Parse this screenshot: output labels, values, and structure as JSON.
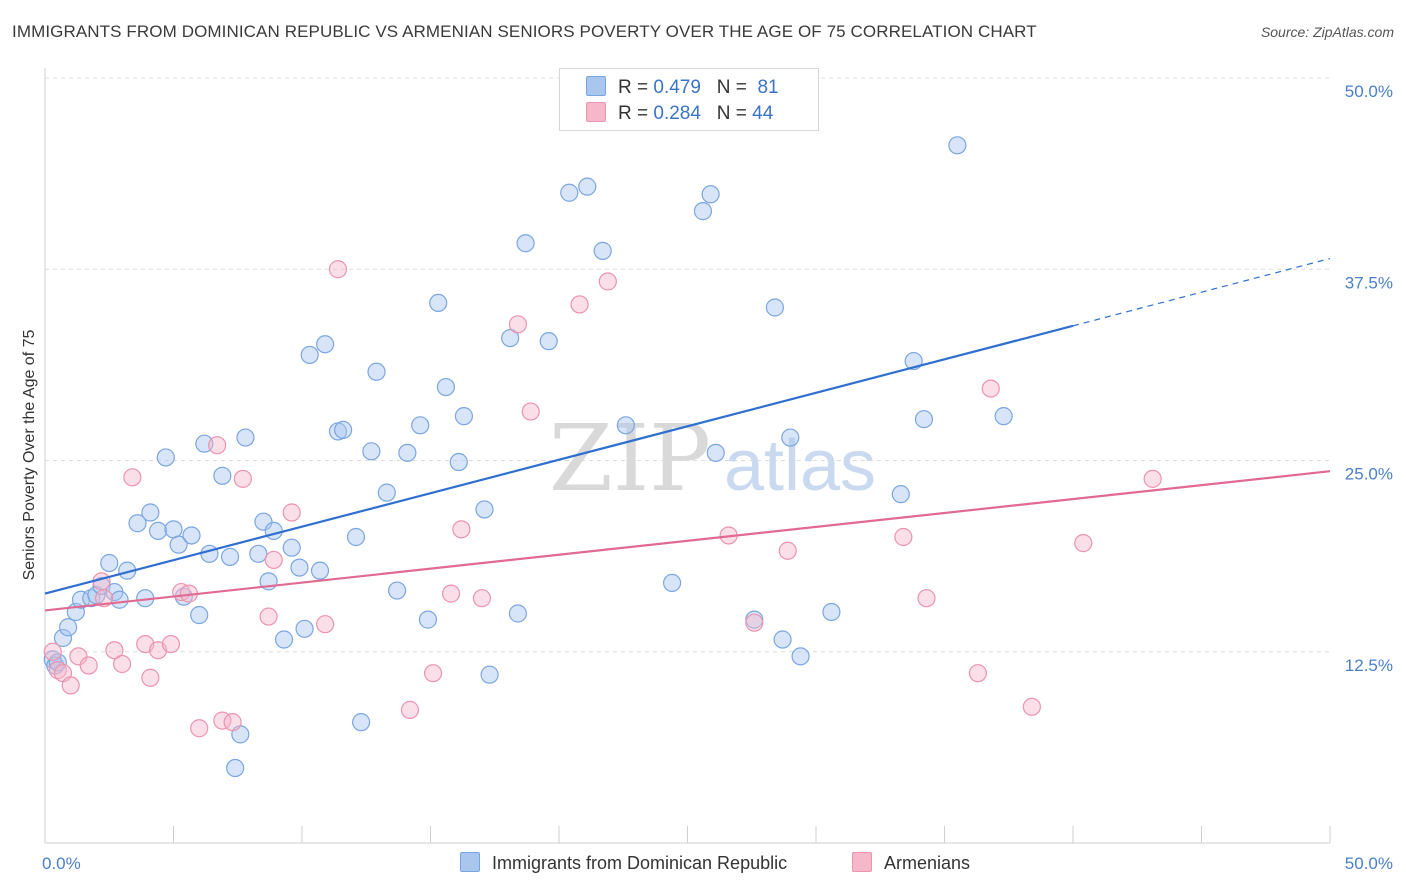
{
  "header": {
    "title": "IMMIGRANTS FROM DOMINICAN REPUBLIC VS ARMENIAN SENIORS POVERTY OVER THE AGE OF 75 CORRELATION CHART",
    "source": "Source: ZipAtlas.com"
  },
  "watermark": {
    "zip": "ZIP",
    "atlas": "atlas"
  },
  "legend": {
    "r_label": "R =",
    "n_label": "N =",
    "items": [
      {
        "r": "0.479",
        "n": "81",
        "color": "#a9c6ef"
      },
      {
        "r": "0.284",
        "n": "44",
        "color": "#f5b8cb"
      }
    ]
  },
  "chart_data": {
    "type": "scatter",
    "ylabel": "Seniors Poverty Over the Age of 75",
    "xlim": [
      0,
      50
    ],
    "ylim": [
      0,
      50
    ],
    "x_tick_labels": [
      "0.0%",
      "50.0%"
    ],
    "y_ticks": [
      12.5,
      25.0,
      37.5,
      50.0
    ],
    "y_tick_labels": [
      "12.5%",
      "25.0%",
      "37.5%",
      "50.0%"
    ],
    "grid": true,
    "legend_position": "top-center",
    "series": [
      {
        "name": "Immigrants from Dominican Republic",
        "color": "#a9c6ef",
        "stroke": "#7aa6e0",
        "trend": {
          "x0": 0,
          "y0": 16.3,
          "x1": 40,
          "y1": 33.8,
          "dashed_to_x": 50,
          "dashed_to_y": 38.2,
          "color": "#2f6fd0"
        },
        "points": [
          [
            0.3,
            12.0
          ],
          [
            0.4,
            11.6
          ],
          [
            0.5,
            11.8
          ],
          [
            0.7,
            13.4
          ],
          [
            0.9,
            14.1
          ],
          [
            1.2,
            15.1
          ],
          [
            1.4,
            15.9
          ],
          [
            1.8,
            16.0
          ],
          [
            2.0,
            16.2
          ],
          [
            2.2,
            16.8
          ],
          [
            2.5,
            18.3
          ],
          [
            2.7,
            16.4
          ],
          [
            2.9,
            15.9
          ],
          [
            3.2,
            17.8
          ],
          [
            3.6,
            20.9
          ],
          [
            3.9,
            16.0
          ],
          [
            4.1,
            21.6
          ],
          [
            4.4,
            20.4
          ],
          [
            4.7,
            25.2
          ],
          [
            5.0,
            20.5
          ],
          [
            5.2,
            19.5
          ],
          [
            5.4,
            16.1
          ],
          [
            5.7,
            20.1
          ],
          [
            6.0,
            14.9
          ],
          [
            6.2,
            26.1
          ],
          [
            6.4,
            18.9
          ],
          [
            6.9,
            24.0
          ],
          [
            7.2,
            18.7
          ],
          [
            7.4,
            4.9
          ],
          [
            7.6,
            7.1
          ],
          [
            7.8,
            26.5
          ],
          [
            8.3,
            18.9
          ],
          [
            8.5,
            21.0
          ],
          [
            8.7,
            17.1
          ],
          [
            8.9,
            20.4
          ],
          [
            9.3,
            13.3
          ],
          [
            9.6,
            19.3
          ],
          [
            9.9,
            18.0
          ],
          [
            10.1,
            14.0
          ],
          [
            10.3,
            31.9
          ],
          [
            10.7,
            17.8
          ],
          [
            10.9,
            32.6
          ],
          [
            11.4,
            26.9
          ],
          [
            11.6,
            27.0
          ],
          [
            12.1,
            20.0
          ],
          [
            12.3,
            7.9
          ],
          [
            12.7,
            25.6
          ],
          [
            12.9,
            30.8
          ],
          [
            13.3,
            22.9
          ],
          [
            13.7,
            16.5
          ],
          [
            14.1,
            25.5
          ],
          [
            14.6,
            27.3
          ],
          [
            14.9,
            14.6
          ],
          [
            15.3,
            35.3
          ],
          [
            15.6,
            29.8
          ],
          [
            16.1,
            24.9
          ],
          [
            16.3,
            27.9
          ],
          [
            17.1,
            21.8
          ],
          [
            17.3,
            11.0
          ],
          [
            18.1,
            33.0
          ],
          [
            18.4,
            15.0
          ],
          [
            18.7,
            39.2
          ],
          [
            19.6,
            32.8
          ],
          [
            20.4,
            42.5
          ],
          [
            21.1,
            42.9
          ],
          [
            21.7,
            38.7
          ],
          [
            22.6,
            27.3
          ],
          [
            24.4,
            17.0
          ],
          [
            25.6,
            41.3
          ],
          [
            25.9,
            42.4
          ],
          [
            26.1,
            25.5
          ],
          [
            27.6,
            14.6
          ],
          [
            28.4,
            35.0
          ],
          [
            28.7,
            13.3
          ],
          [
            29.0,
            26.5
          ],
          [
            29.4,
            12.2
          ],
          [
            30.6,
            15.1
          ],
          [
            33.3,
            22.8
          ],
          [
            33.8,
            31.5
          ],
          [
            34.2,
            27.7
          ],
          [
            35.5,
            45.6
          ],
          [
            37.3,
            27.9
          ]
        ]
      },
      {
        "name": "Armenians",
        "color": "#f5b8cb",
        "stroke": "#ec93ae",
        "trend": {
          "x0": 0,
          "y0": 15.2,
          "x1": 50,
          "y1": 24.3,
          "color": "#e06a92"
        },
        "points": [
          [
            0.3,
            12.5
          ],
          [
            0.5,
            11.3
          ],
          [
            0.7,
            11.1
          ],
          [
            1.0,
            10.3
          ],
          [
            1.3,
            12.2
          ],
          [
            1.7,
            11.6
          ],
          [
            2.2,
            17.1
          ],
          [
            2.3,
            16.0
          ],
          [
            2.7,
            12.6
          ],
          [
            3.0,
            11.7
          ],
          [
            3.4,
            23.9
          ],
          [
            3.9,
            13.0
          ],
          [
            4.1,
            10.8
          ],
          [
            4.4,
            12.6
          ],
          [
            4.9,
            13.0
          ],
          [
            5.3,
            16.4
          ],
          [
            5.6,
            16.3
          ],
          [
            6.0,
            7.5
          ],
          [
            6.7,
            26.0
          ],
          [
            6.9,
            8.0
          ],
          [
            7.3,
            7.9
          ],
          [
            7.7,
            23.8
          ],
          [
            8.7,
            14.8
          ],
          [
            8.9,
            18.5
          ],
          [
            9.6,
            21.6
          ],
          [
            10.9,
            14.3
          ],
          [
            11.4,
            37.5
          ],
          [
            14.2,
            8.7
          ],
          [
            15.1,
            11.1
          ],
          [
            15.8,
            16.3
          ],
          [
            16.2,
            20.5
          ],
          [
            17.0,
            16.0
          ],
          [
            18.4,
            33.9
          ],
          [
            18.9,
            28.2
          ],
          [
            20.8,
            35.2
          ],
          [
            21.9,
            36.7
          ],
          [
            26.6,
            20.1
          ],
          [
            27.6,
            14.4
          ],
          [
            28.9,
            19.1
          ],
          [
            33.4,
            20.0
          ],
          [
            34.3,
            16.0
          ],
          [
            36.3,
            11.1
          ],
          [
            36.8,
            29.7
          ],
          [
            38.4,
            8.9
          ],
          [
            40.4,
            19.6
          ],
          [
            43.1,
            23.8
          ]
        ]
      }
    ]
  }
}
